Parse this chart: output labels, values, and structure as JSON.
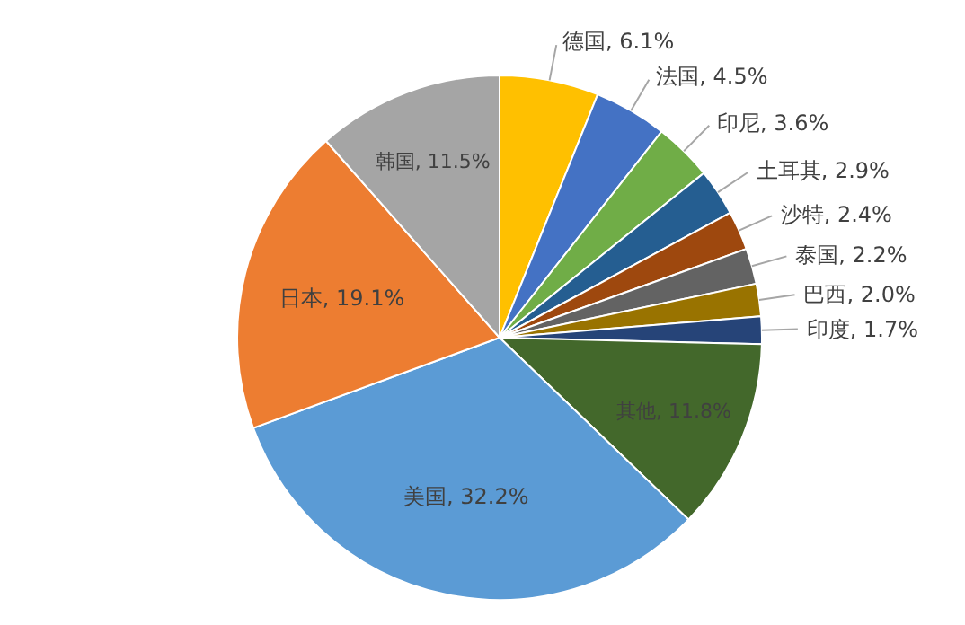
{
  "chart_data": {
    "type": "pie",
    "categories": [
      "德国",
      "法国",
      "印尼",
      "土耳其",
      "沙特",
      "泰国",
      "巴西",
      "印度",
      "其他",
      "美国",
      "日本",
      "韩国"
    ],
    "values": [
      6.1,
      4.5,
      3.6,
      2.9,
      2.4,
      2.2,
      2.0,
      1.7,
      11.8,
      32.2,
      19.1,
      11.5
    ],
    "value_labels": [
      "6.1%",
      "4.5%",
      "3.6%",
      "2.9%",
      "2.4%",
      "2.2%",
      "2.0%",
      "1.7%",
      "11.8%",
      "32.2%",
      "19.1%",
      "11.5%"
    ],
    "colors": [
      "#ffc000",
      "#4472c4",
      "#70ad47",
      "#255e91",
      "#9e480e",
      "#636363",
      "#997300",
      "#264478",
      "#43682b",
      "#5b9bd5",
      "#ed7d31",
      "#a5a5a5"
    ],
    "legend": false
  }
}
